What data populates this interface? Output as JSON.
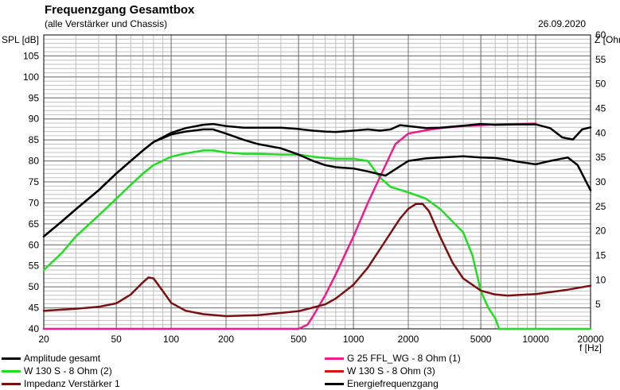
{
  "chart_data": {
    "type": "line",
    "title": "Frequenzgang Gesamtbox",
    "subtitle": "(alle Verstärker und Chassis)",
    "date": "26.09.2020",
    "xlabel": "f [Hz]",
    "ylabel": "SPL [dB]",
    "ylabel_right": "Z [Ohm]",
    "xscale": "log",
    "xlim": [
      20,
      20000
    ],
    "ylim": [
      40,
      110
    ],
    "ylim_right": [
      0,
      60
    ],
    "grid": true,
    "legend_position": "bottom",
    "x_ticks": [
      "20",
      "50",
      "100",
      "200",
      "500",
      "1000",
      "2000",
      "5000",
      "10000",
      "20000"
    ],
    "y_ticks": [
      "40",
      "45",
      "50",
      "55",
      "60",
      "65",
      "70",
      "75",
      "80",
      "85",
      "90",
      "95",
      "100",
      "105"
    ],
    "y_ticks_right": [
      "5",
      "10",
      "15",
      "20",
      "25",
      "30",
      "35",
      "40",
      "45",
      "50",
      "55",
      "60"
    ],
    "series": [
      {
        "name": "Amplitude gesamt",
        "color": "#000000",
        "axis": "left",
        "x": [
          20,
          25,
          30,
          40,
          50,
          60,
          70,
          80,
          100,
          120,
          150,
          170,
          200,
          250,
          300,
          400,
          500,
          600,
          700,
          800,
          1000,
          1200,
          1500,
          1700,
          2000,
          2500,
          3000,
          4000,
          5000,
          6000,
          7000,
          8000,
          10000,
          12000,
          15000,
          17000,
          20000
        ],
        "values": [
          62,
          65.5,
          68.5,
          73,
          77,
          80,
          82.5,
          84.5,
          86.3,
          87,
          87.5,
          87.5,
          86.5,
          85,
          84,
          83,
          81.5,
          80,
          79,
          78.5,
          78.2,
          77.5,
          76.5,
          78,
          80,
          80.6,
          80.8,
          81.1,
          80.8,
          80.7,
          80.3,
          79.8,
          79.2,
          80,
          80.8,
          79,
          73
        ]
      },
      {
        "name": "G 25 FFL_WG - 8 Ohm (1)",
        "color": "#ee1c8c",
        "axis": "left",
        "x": [
          20,
          500,
          560,
          600,
          700,
          800,
          1000,
          1200,
          1500,
          1700,
          2000,
          2500,
          3000,
          4000,
          5000,
          6000,
          8000,
          10000
        ],
        "values": [
          40,
          40,
          41,
          43,
          48,
          53,
          62,
          70,
          79,
          84,
          86.5,
          87.3,
          87.8,
          88.3,
          88.5,
          88.7,
          88.8,
          88.9
        ]
      },
      {
        "name": "W 130 S - 8 Ohm (2)",
        "color": "#22dd22",
        "axis": "left",
        "x": [
          20,
          25,
          30,
          40,
          50,
          60,
          70,
          80,
          100,
          120,
          150,
          170,
          200,
          250,
          300,
          400,
          500,
          600,
          700,
          800,
          1000,
          1200,
          1400,
          1600,
          2000,
          2500,
          3000,
          4000,
          4500,
          5000,
          5500,
          6000,
          6300,
          20000
        ],
        "values": [
          54,
          58,
          62,
          67,
          71,
          74.3,
          77,
          79,
          81,
          81.8,
          82.5,
          82.5,
          82,
          81.7,
          81.7,
          81.5,
          81.5,
          81,
          80.7,
          80.5,
          80.5,
          80,
          76,
          73.8,
          72.5,
          71,
          68.5,
          63,
          57.5,
          49,
          45,
          42.5,
          40,
          40
        ]
      },
      {
        "name": "W 130 S - 8 Ohm (3)",
        "color": "#dd1111",
        "axis": "left",
        "x": [
          1000
        ],
        "values": [
          40
        ]
      },
      {
        "name": "Impedanz Verstärker 1",
        "color": "#7a1010",
        "axis": "right",
        "x": [
          20,
          30,
          40,
          50,
          60,
          70,
          75,
          80,
          90,
          100,
          120,
          150,
          200,
          300,
          500,
          700,
          800,
          1000,
          1200,
          1500,
          1800,
          2000,
          2200,
          2400,
          2600,
          3000,
          3500,
          4000,
          5000,
          6000,
          7000,
          10000,
          15000,
          20000
        ],
        "values": [
          3.7,
          4.1,
          4.5,
          5.2,
          7,
          9.5,
          10.5,
          10.3,
          7.7,
          5.3,
          3.7,
          3,
          2.6,
          2.8,
          3.6,
          5,
          6.2,
          9,
          12.5,
          18,
          22.5,
          24.5,
          25.5,
          25.5,
          24,
          18.7,
          13.5,
          10.3,
          7.8,
          7,
          6.8,
          7.1,
          8,
          8.8
        ]
      },
      {
        "name": "Energiefrequenzgang",
        "color": "#000000",
        "axis": "left",
        "x": [
          20,
          25,
          30,
          40,
          50,
          60,
          70,
          80,
          100,
          120,
          150,
          170,
          200,
          250,
          300,
          400,
          500,
          600,
          700,
          800,
          1000,
          1200,
          1400,
          1600,
          1800,
          2000,
          2500,
          3000,
          4000,
          5000,
          6000,
          8000,
          10000,
          12000,
          14000,
          16000,
          18000,
          20000
        ],
        "values": [
          62,
          65.5,
          68.5,
          73,
          77,
          80,
          82.5,
          84.5,
          86.7,
          87.8,
          88.6,
          88.8,
          88.3,
          87.9,
          87.9,
          87.9,
          87.6,
          87.2,
          87,
          86.9,
          87.2,
          87.5,
          87.2,
          87.5,
          88.5,
          88.3,
          87.8,
          87.9,
          88.4,
          88.8,
          88.6,
          88.7,
          88.7,
          87.8,
          85.6,
          85.1,
          87.5,
          88
        ]
      }
    ]
  }
}
